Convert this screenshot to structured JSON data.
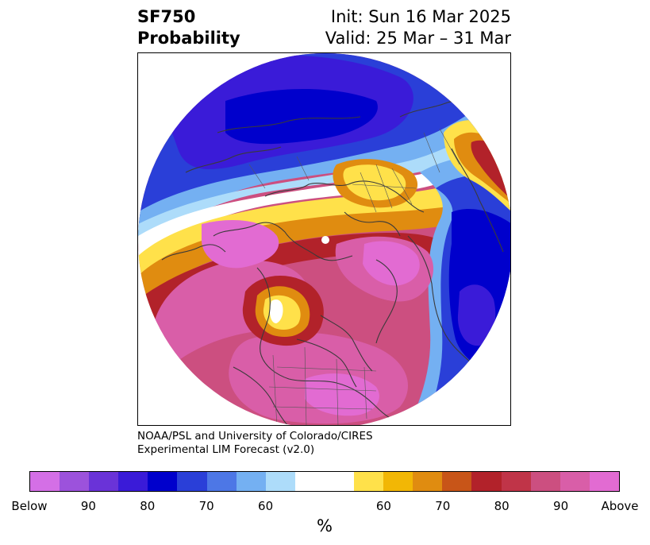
{
  "header": {
    "title_line1": "SF750",
    "title_line2": "Probability",
    "init": "Init: Sun 16 Mar 2025",
    "valid": "Valid: 25 Mar – 31 Mar"
  },
  "credit": {
    "line1": "NOAA/PSL and University of Colorado/CIRES",
    "line2": "Experimental LIM Forecast (v2.0)"
  },
  "colorbar": {
    "colors": [
      "#d46fe6",
      "#9c52dc",
      "#6a33d8",
      "#3a1bd8",
      "#0000cc",
      "#2a3fd8",
      "#4d77e6",
      "#74b0f2",
      "#addcfa",
      "#ffffff",
      "#ffffff",
      "#ffe14a",
      "#f2b705",
      "#e08c10",
      "#c85518",
      "#b2222a",
      "#c03448",
      "#cc4f80",
      "#d95ea8",
      "#e26bd2"
    ],
    "tick_labels": [
      "Below",
      "90",
      "80",
      "70",
      "60",
      "60",
      "70",
      "80",
      "90",
      "Above"
    ],
    "unit": "%"
  },
  "map": {
    "palette": {
      "deep_blue": "#0000cc",
      "blue_violet": "#3a1bd8",
      "royal_blue": "#2a3fd8",
      "light_blue": "#74b0f2",
      "pale_blue": "#addcfa",
      "yellow": "#ffe14a",
      "orange": "#e08c10",
      "dark_red": "#b2222a",
      "crimson": "#c03448",
      "magenta": "#cc4f80",
      "pink": "#d95ea8",
      "orchid": "#e26bd2",
      "coastline": "#3a3a3a"
    }
  }
}
